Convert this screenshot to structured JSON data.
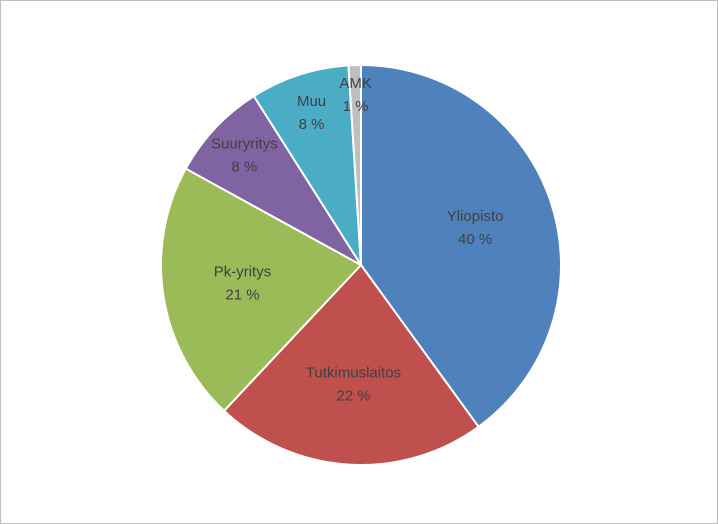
{
  "chart_data": {
    "type": "pie",
    "categories": [
      "Yliopisto",
      "Tutkimuslaitos",
      "Pk-yritys",
      "Suuryritys",
      "Muu",
      "AMK"
    ],
    "values": [
      40,
      22,
      21,
      8,
      8,
      1
    ],
    "value_labels": [
      "40 %",
      "22 %",
      "21 %",
      "8 %",
      "8 %",
      "1 %"
    ],
    "colors": [
      "#4f81bd",
      "#c0504d",
      "#9bbb59",
      "#8064a2",
      "#4bacc6",
      "#bfbfbf"
    ]
  }
}
